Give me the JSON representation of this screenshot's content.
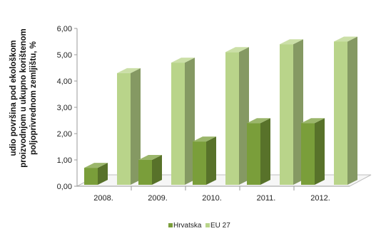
{
  "chart_data": {
    "type": "bar",
    "categories": [
      "2008.",
      "2009.",
      "2010.",
      "2011.",
      "2012."
    ],
    "series": [
      {
        "name": "Hrvatska",
        "values": [
          0.7,
          1.0,
          1.7,
          2.4,
          2.4
        ],
        "color": "#7a9e3a"
      },
      {
        "name": "EU 27",
        "values": [
          4.3,
          4.7,
          5.1,
          5.4,
          5.5
        ],
        "color": "#b9d48a"
      }
    ],
    "ylabel_lines": [
      "udio površina pod ekološkom",
      "proizvodnjom u ukupno korištenom",
      "poljoprivrednom zemljištu, %"
    ],
    "ytick_labels": [
      "0,00",
      "1,00",
      "2,00",
      "3,00",
      "4,00",
      "5,00",
      "6,00"
    ],
    "ylim": [
      0,
      6
    ],
    "grid": false,
    "legend": "bottom",
    "style": "3d-clustered-bar"
  }
}
